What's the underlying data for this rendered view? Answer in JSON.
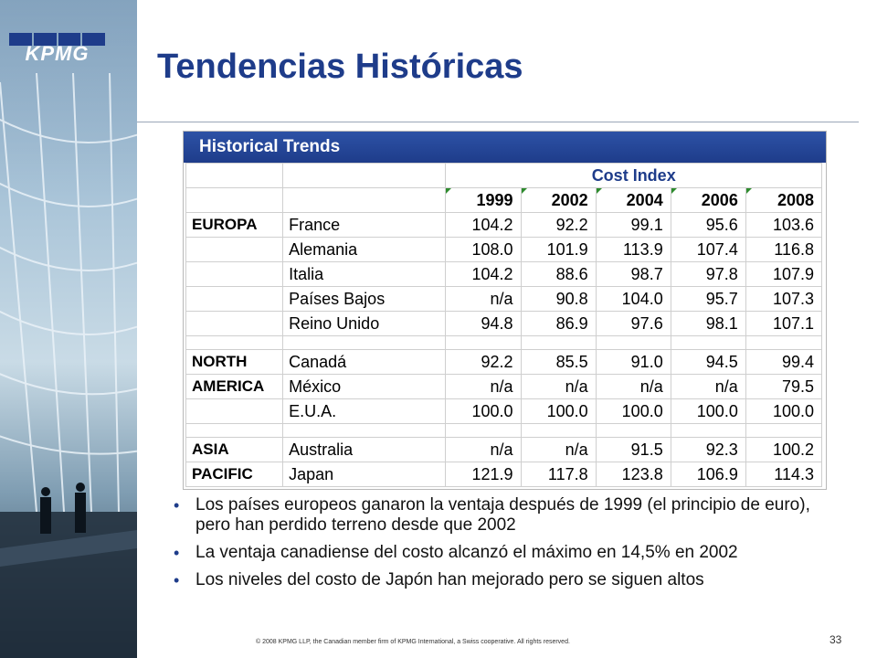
{
  "logo": {
    "text": "KPMG"
  },
  "slide": {
    "title": "Tendencias Históricas",
    "page_number": "33"
  },
  "table": {
    "title": "Historical Trends",
    "group_header": "Cost Index",
    "years": [
      "1999",
      "2002",
      "2004",
      "2006",
      "2008"
    ],
    "groups": [
      {
        "region_lines": [
          "EUROPA"
        ],
        "rows": [
          {
            "country": "France",
            "values": [
              "104.2",
              "92.2",
              "99.1",
              "95.6",
              "103.6"
            ]
          },
          {
            "country": "Alemania",
            "values": [
              "108.0",
              "101.9",
              "113.9",
              "107.4",
              "116.8"
            ]
          },
          {
            "country": "Italia",
            "values": [
              "104.2",
              "88.6",
              "98.7",
              "97.8",
              "107.9"
            ]
          },
          {
            "country": "Países Bajos",
            "values": [
              "n/a",
              "90.8",
              "104.0",
              "95.7",
              "107.3"
            ]
          },
          {
            "country": "Reino Unido",
            "values": [
              "94.8",
              "86.9",
              "97.6",
              "98.1",
              "107.1"
            ]
          }
        ]
      },
      {
        "region_lines": [
          "NORTH",
          "AMERICA"
        ],
        "rows": [
          {
            "country": "Canadá",
            "values": [
              "92.2",
              "85.5",
              "91.0",
              "94.5",
              "99.4"
            ]
          },
          {
            "country": "México",
            "values": [
              "n/a",
              "n/a",
              "n/a",
              "n/a",
              "79.5"
            ]
          },
          {
            "country": "E.U.A.",
            "values": [
              "100.0",
              "100.0",
              "100.0",
              "100.0",
              "100.0"
            ]
          }
        ]
      },
      {
        "region_lines": [
          "ASIA",
          "PACIFIC"
        ],
        "rows": [
          {
            "country": "Australia",
            "values": [
              "n/a",
              "n/a",
              "91.5",
              "92.3",
              "100.2"
            ]
          },
          {
            "country": "Japan",
            "values": [
              "121.9",
              "117.8",
              "123.8",
              "106.9",
              "114.3"
            ]
          }
        ]
      }
    ]
  },
  "bullets": [
    "Los países europeos ganaron la ventaja después de 1999 (el principio de euro), pero han perdido terreno desde que 2002",
    "La ventaja canadiense del costo alcanzó el máximo en 14,5% en 2002",
    "Los niveles del costo de Japón han mejorado pero se siguen altos"
  ],
  "footer": {
    "copyright": "© 2008 KPMG LLP, the Canadian  member firm of KPMG International,  a Swiss cooperative.  All rights reserved."
  },
  "colors": {
    "brand": "#1e3c8a",
    "year_marker": "#2e8b2e"
  }
}
